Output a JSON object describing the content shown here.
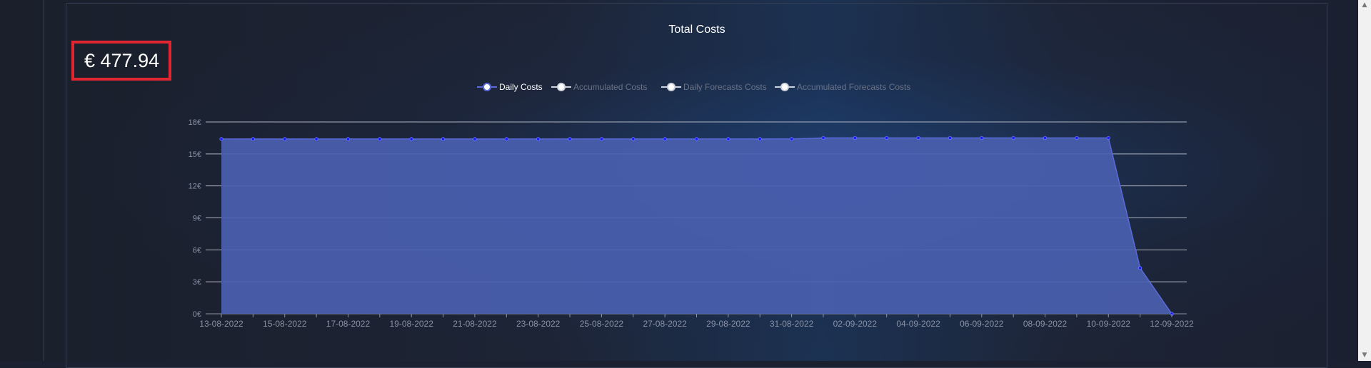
{
  "total": {
    "amount": "€ 477.94"
  },
  "colors": {
    "area_fill": "#4a5fb0",
    "line": "#5a6ad8",
    "point": "#1818ff",
    "grid": "#c8ccd8",
    "accent_box": "#e02630"
  },
  "scroll": {
    "up_icon": "▲",
    "down_icon": "▼"
  },
  "chart_data": {
    "type": "area",
    "title": "Total Costs",
    "legend": {
      "position": "top-center",
      "entries": [
        {
          "name": "Daily Costs",
          "active": true
        },
        {
          "name": "Accumulated Costs",
          "active": false
        },
        {
          "name": "Daily Forecasts Costs",
          "active": false
        },
        {
          "name": "Accumulated Forecasts Costs",
          "active": false
        }
      ]
    },
    "y_unit": "€",
    "ylim": [
      0,
      18
    ],
    "y_ticks": [
      "0€",
      "3€",
      "6€",
      "9€",
      "12€",
      "15€",
      "18€"
    ],
    "y_tick_values": [
      0,
      3,
      6,
      9,
      12,
      15,
      18
    ],
    "x_tick_labels": [
      "13-08-2022",
      "15-08-2022",
      "17-08-2022",
      "19-08-2022",
      "21-08-2022",
      "23-08-2022",
      "25-08-2022",
      "27-08-2022",
      "29-08-2022",
      "31-08-2022",
      "02-09-2022",
      "04-09-2022",
      "06-09-2022",
      "08-09-2022",
      "10-09-2022",
      "12-09-2022"
    ],
    "series": [
      {
        "name": "Daily Costs",
        "x": [
          "13-08-2022",
          "14-08-2022",
          "15-08-2022",
          "16-08-2022",
          "17-08-2022",
          "18-08-2022",
          "19-08-2022",
          "20-08-2022",
          "21-08-2022",
          "22-08-2022",
          "23-08-2022",
          "24-08-2022",
          "25-08-2022",
          "26-08-2022",
          "27-08-2022",
          "28-08-2022",
          "29-08-2022",
          "30-08-2022",
          "31-08-2022",
          "01-09-2022",
          "02-09-2022",
          "03-09-2022",
          "04-09-2022",
          "05-09-2022",
          "06-09-2022",
          "07-09-2022",
          "08-09-2022",
          "09-09-2022",
          "10-09-2022",
          "11-09-2022",
          "12-09-2022"
        ],
        "values": [
          16.4,
          16.4,
          16.4,
          16.4,
          16.4,
          16.4,
          16.4,
          16.4,
          16.4,
          16.4,
          16.4,
          16.4,
          16.4,
          16.4,
          16.4,
          16.4,
          16.4,
          16.4,
          16.4,
          16.5,
          16.5,
          16.5,
          16.5,
          16.5,
          16.5,
          16.5,
          16.5,
          16.5,
          16.5,
          4.3,
          0.0
        ]
      }
    ]
  }
}
